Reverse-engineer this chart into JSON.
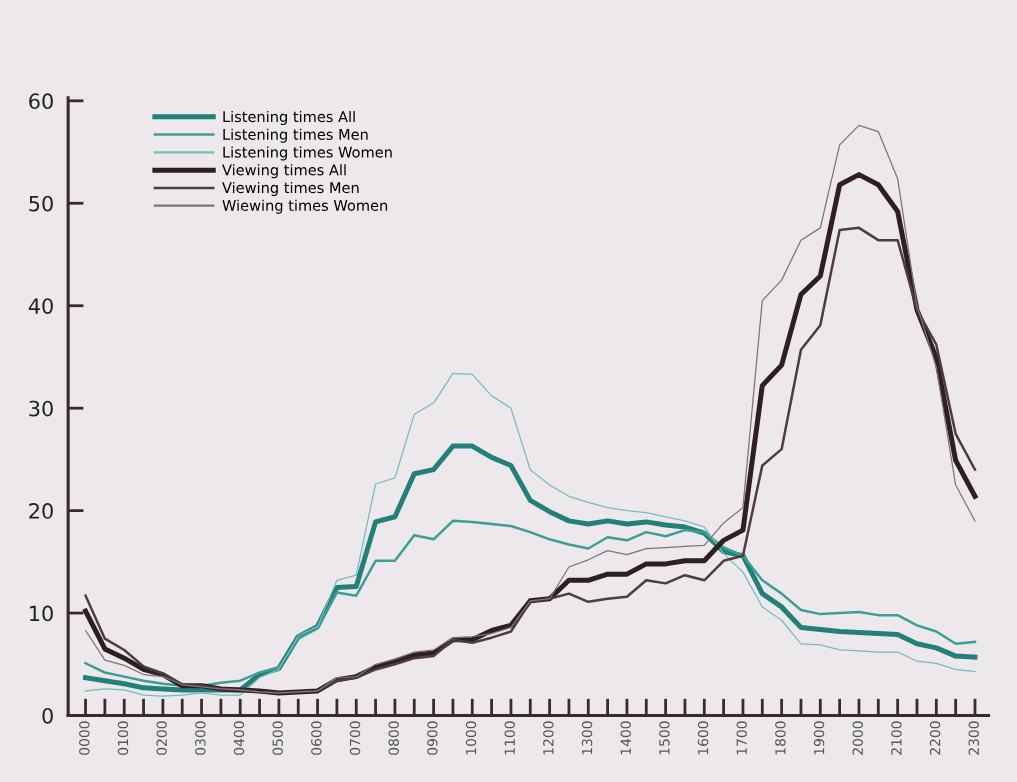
{
  "chart_data": {
    "type": "line",
    "categories": [
      "0000",
      null,
      "0100",
      null,
      "0200",
      null,
      "0300",
      null,
      "0400",
      null,
      "0500",
      null,
      "0600",
      null,
      "0700",
      null,
      "0800",
      null,
      "0900",
      null,
      "1000",
      null,
      "1100",
      null,
      "1200",
      null,
      "1300",
      null,
      "1400",
      null,
      "1500",
      null,
      "1600",
      null,
      "1700",
      null,
      "1800",
      null,
      "1900",
      null,
      "2000",
      null,
      "2100",
      null,
      "2200",
      null,
      "2300"
    ],
    "series": [
      {
        "name": "Listening times All",
        "color": "#237f7a",
        "values": [
          3.7,
          3.4,
          3.1,
          2.7,
          2.6,
          2.5,
          2.5,
          2.5,
          2.5,
          4.0,
          4.6,
          7.7,
          8.7,
          12.5,
          12.6,
          18.9,
          19.4,
          23.6,
          24.0,
          26.3,
          26.3,
          25.2,
          24.4,
          21.0,
          19.9,
          19.0,
          18.7,
          19.0,
          18.7,
          18.9,
          18.6,
          18.4,
          17.8,
          16.0,
          15.6,
          11.9,
          10.6,
          8.6,
          8.4,
          8.2,
          8.1,
          8.0,
          7.9,
          7.0,
          6.6,
          5.8,
          5.7
        ]
      },
      {
        "name": "Listening times Men",
        "color": "#3d9e98",
        "values": [
          5.1,
          4.2,
          3.8,
          3.4,
          3.1,
          2.9,
          2.9,
          3.2,
          3.4,
          4.2,
          4.7,
          7.5,
          8.5,
          12.0,
          11.7,
          15.1,
          15.1,
          17.6,
          17.2,
          19.0,
          18.9,
          18.7,
          18.5,
          17.9,
          17.2,
          16.7,
          16.3,
          17.4,
          17.1,
          17.9,
          17.5,
          18.1,
          17.9,
          16.4,
          15.6,
          13.2,
          11.9,
          10.3,
          9.9,
          10.0,
          10.1,
          9.8,
          9.8,
          8.8,
          8.2,
          7.0,
          7.2
        ]
      },
      {
        "name": "Listening times Women",
        "color": "#76bcb7",
        "values": [
          2.4,
          2.6,
          2.5,
          2.0,
          1.9,
          2.0,
          2.2,
          2.0,
          2.0,
          3.7,
          4.5,
          7.8,
          8.7,
          13.2,
          13.7,
          22.6,
          23.2,
          29.4,
          30.5,
          33.4,
          33.3,
          31.2,
          30.0,
          24.0,
          22.5,
          21.4,
          20.8,
          20.3,
          20.0,
          19.8,
          19.4,
          19.0,
          18.4,
          15.8,
          14.0,
          10.6,
          9.3,
          7.0,
          6.9,
          6.4,
          6.3,
          6.2,
          6.2,
          5.3,
          5.1,
          4.5,
          4.3
        ]
      },
      {
        "name": "Viewing times All",
        "color": "#2e1f24",
        "values": [
          10.2,
          6.5,
          5.6,
          4.5,
          4.0,
          2.9,
          2.9,
          2.6,
          2.5,
          2.4,
          2.2,
          2.3,
          2.4,
          3.5,
          3.8,
          4.7,
          5.3,
          5.9,
          6.1,
          7.4,
          7.4,
          8.3,
          8.8,
          11.2,
          11.4,
          13.2,
          13.2,
          13.8,
          13.8,
          14.8,
          14.8,
          15.1,
          15.1,
          17.1,
          18.1,
          32.2,
          34.2,
          41.1,
          42.9,
          51.8,
          52.8,
          51.8,
          49.2,
          39.6,
          34.9,
          24.9,
          21.4
        ]
      },
      {
        "name": "Viewing times Men",
        "color": "#4d3c42",
        "values": [
          11.7,
          7.5,
          6.4,
          4.8,
          4.1,
          3.0,
          2.9,
          2.6,
          2.5,
          2.3,
          2.2,
          2.3,
          2.4,
          3.4,
          3.7,
          4.5,
          5.0,
          5.6,
          5.8,
          7.4,
          7.1,
          7.6,
          8.2,
          11.1,
          11.4,
          11.9,
          11.1,
          11.4,
          11.6,
          13.2,
          12.9,
          13.7,
          13.2,
          15.1,
          15.6,
          24.4,
          26.0,
          35.7,
          38.1,
          47.4,
          47.6,
          46.4,
          46.4,
          39.6,
          36.2,
          27.5,
          24.0
        ]
      },
      {
        "name": "Wiewing times Women",
        "color": "#7d7378",
        "values": [
          8.3,
          5.4,
          4.9,
          4.0,
          3.8,
          3.0,
          2.8,
          2.6,
          2.5,
          2.3,
          2.2,
          2.3,
          2.4,
          3.7,
          3.8,
          5.0,
          5.5,
          6.2,
          6.4,
          7.6,
          7.7,
          8.0,
          8.6,
          11.2,
          11.4,
          14.5,
          15.2,
          16.1,
          15.7,
          16.3,
          16.4,
          16.5,
          16.6,
          18.8,
          20.3,
          40.5,
          42.5,
          46.4,
          47.6,
          55.7,
          57.6,
          57.0,
          52.4,
          40.0,
          34.0,
          22.5,
          19.0
        ]
      }
    ],
    "ylim": [
      0,
      60.3
    ],
    "yticks": [
      0,
      10,
      20,
      30,
      40,
      50,
      60
    ],
    "grid": false,
    "legend": "top left",
    "marker": "none",
    "line_style": "solid"
  }
}
